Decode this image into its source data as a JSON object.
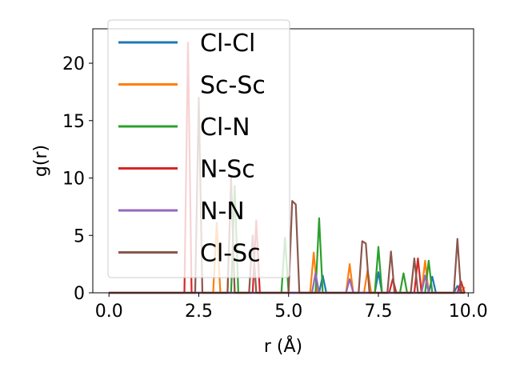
{
  "chart_data": {
    "type": "line",
    "title": "",
    "xlabel": "r (Å)",
    "ylabel": "g(r)",
    "xlim": [
      -0.45,
      10.15
    ],
    "ylim": [
      0,
      23
    ],
    "xticks": [
      "0.0",
      "2.5",
      "5.0",
      "7.5",
      "10.0"
    ],
    "xtick_values": [
      0,
      2.5,
      5,
      7.5,
      10
    ],
    "yticks": [
      "0",
      "5",
      "10",
      "15",
      "20"
    ],
    "ytick_values": [
      0,
      5,
      10,
      15,
      20
    ],
    "grid": false,
    "legend_position": "upper-left",
    "series": [
      {
        "name": "Cl-Cl",
        "color": "#1f77b4",
        "x": [
          0,
          5.85,
          5.95,
          6.05,
          7.4,
          7.5,
          7.6,
          8.9,
          9.0,
          9.1,
          9.6,
          9.7,
          9.8,
          9.9
        ],
        "y": [
          0,
          0,
          1.5,
          0,
          0,
          1.8,
          0,
          0,
          1.4,
          0,
          0,
          0.6,
          0,
          0
        ]
      },
      {
        "name": "Sc-Sc",
        "color": "#ff7f0e",
        "x": [
          0,
          2.9,
          3.0,
          3.1,
          3.3,
          3.4,
          3.5,
          5.6,
          5.7,
          5.8,
          6.6,
          6.7,
          6.8,
          7.1,
          7.2,
          7.3,
          8.7,
          8.8,
          8.9,
          9.8,
          9.9
        ],
        "y": [
          0,
          0,
          6.1,
          0,
          0,
          9.8,
          0,
          0,
          3.5,
          0,
          0,
          2.5,
          0,
          0,
          2.0,
          0,
          0,
          2.8,
          0,
          0,
          0.5
        ]
      },
      {
        "name": "Cl-N",
        "color": "#2ca02c",
        "x": [
          0,
          3.4,
          3.5,
          3.6,
          4.8,
          4.9,
          5.0,
          5.75,
          5.85,
          5.95,
          7.4,
          7.5,
          7.6,
          8.1,
          8.2,
          8.3,
          8.8,
          8.9,
          9.0,
          9.9
        ],
        "y": [
          0,
          0,
          9.3,
          0,
          0,
          4.8,
          0,
          0,
          6.5,
          0,
          0,
          4.0,
          0,
          0,
          1.7,
          0,
          0,
          2.8,
          0,
          0
        ]
      },
      {
        "name": "N-Sc",
        "color": "#d62728",
        "x": [
          0,
          2.1,
          2.2,
          2.3,
          4.0,
          4.1,
          4.2,
          7.8,
          7.9,
          8.0,
          8.5,
          8.6,
          8.7,
          9.7,
          9.8,
          9.9
        ],
        "y": [
          0,
          0,
          21.8,
          0,
          0,
          6.3,
          0,
          0,
          1.2,
          0,
          0,
          3.0,
          0,
          0,
          1.0,
          0
        ]
      },
      {
        "name": "N-N",
        "color": "#9467bd",
        "x": [
          0,
          5.65,
          5.75,
          5.85,
          6.6,
          6.7,
          6.8,
          8.7,
          8.8,
          8.9,
          9.9
        ],
        "y": [
          0,
          0,
          1.7,
          0,
          0,
          1.2,
          0,
          0,
          1.5,
          0,
          0
        ]
      },
      {
        "name": "Cl-Sc",
        "color": "#8c564b",
        "x": [
          0,
          2.4,
          2.5,
          2.6,
          3.3,
          3.4,
          3.5,
          3.9,
          4.0,
          4.1,
          5.0,
          5.1,
          5.2,
          5.3,
          6.95,
          7.05,
          7.15,
          7.25,
          7.75,
          7.85,
          7.95,
          8.4,
          8.5,
          8.6,
          9.6,
          9.7,
          9.8,
          9.9
        ],
        "y": [
          0,
          0,
          17.0,
          0,
          0,
          10.0,
          0,
          0,
          5.0,
          0,
          0,
          8.0,
          7.7,
          0,
          0,
          4.5,
          4.3,
          0,
          0,
          3.6,
          0,
          0,
          3.0,
          0,
          0,
          4.7,
          0,
          0
        ]
      }
    ]
  }
}
